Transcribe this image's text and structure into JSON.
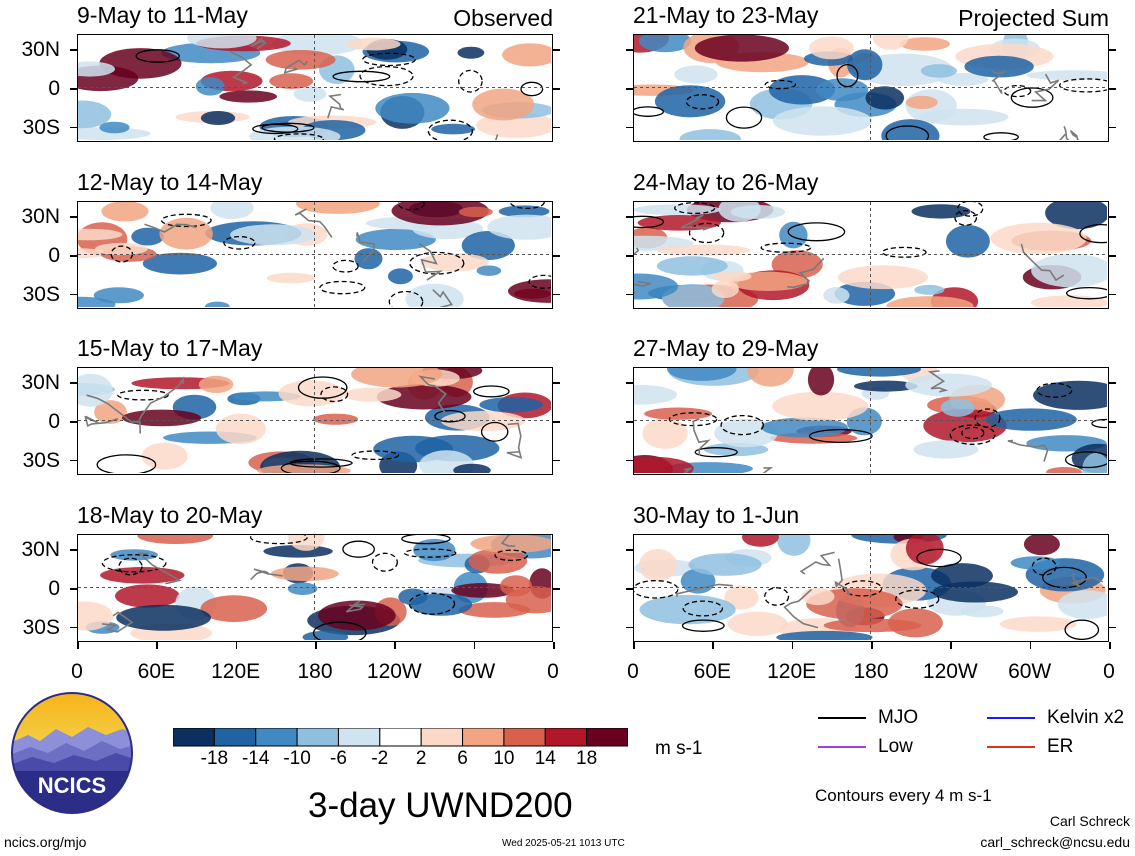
{
  "chart_data": {
    "type": "heatmap",
    "title": "3-day UWND200",
    "colorbar": {
      "units": "m s-1",
      "ticks": [
        "-18",
        "-14",
        "-10",
        "-6",
        "-2",
        "2",
        "6",
        "10",
        "14",
        "18"
      ],
      "colors": [
        "#0b3060",
        "#1f63a4",
        "#4189c3",
        "#8ebfdf",
        "#cfe3f0",
        "#ffffff",
        "#fbd9c8",
        "#f2a483",
        "#d8604d",
        "#b1172b",
        "#68001e"
      ]
    },
    "y_ticks": [
      "30N",
      "0",
      "30S"
    ],
    "x_ticks": [
      "0",
      "60E",
      "120E",
      "180",
      "120W",
      "60W",
      "0"
    ],
    "columns": [
      {
        "header": "Observed",
        "panels": [
          {
            "label": "9-May to 11-May"
          },
          {
            "label": "12-May to 14-May"
          },
          {
            "label": "15-May to 17-May"
          },
          {
            "label": "18-May to 20-May"
          }
        ]
      },
      {
        "header": "Projected Sum",
        "panels": [
          {
            "label": "21-May to 23-May"
          },
          {
            "label": "24-May to 26-May"
          },
          {
            "label": "27-May to 29-May"
          },
          {
            "label": "30-May to 1-Jun"
          }
        ]
      }
    ],
    "legend": [
      {
        "name": "MJO",
        "color": "#000000"
      },
      {
        "name": "Kelvin x2",
        "color": "#1a1aff"
      },
      {
        "name": "Low",
        "color": "#a040e0"
      },
      {
        "name": "ER",
        "color": "#e03020"
      }
    ],
    "contour_note": "Contours every 4 m s-1"
  },
  "logo": {
    "text": "NCICS"
  },
  "footer": {
    "url": "ncics.org/mjo",
    "timestamp": "Wed 2025-05-21 1013 UTC",
    "author": "Carl Schreck",
    "email": "carl_schreck@ncsu.edu"
  }
}
